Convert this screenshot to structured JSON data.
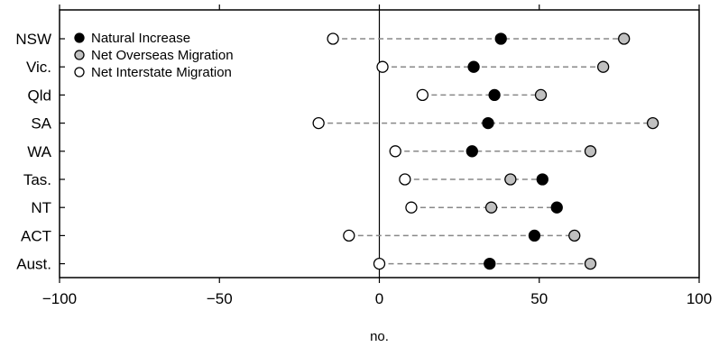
{
  "chart_data": {
    "type": "dot",
    "title": "",
    "xlabel": "no.",
    "ylabel": "",
    "xlim": [
      -100,
      100
    ],
    "xticks": [
      -100,
      -50,
      0,
      50,
      100
    ],
    "xtick_labels": [
      "−100",
      "−50",
      "0",
      "50",
      "100"
    ],
    "grid": false,
    "legend_position": "top-left",
    "categories": [
      "NSW",
      "Vic.",
      "Qld",
      "SA",
      "WA",
      "Tas.",
      "NT",
      "ACT",
      "Aust."
    ],
    "series": [
      {
        "name": "Natural Increase",
        "color": "#000000",
        "values": [
          38,
          29.5,
          36,
          34,
          29,
          51,
          55.5,
          48.5,
          34.5
        ]
      },
      {
        "name": "Net Overseas Migration",
        "color": "#c0c0c0",
        "values": [
          76.5,
          70,
          50.5,
          85.5,
          66,
          41,
          35,
          61,
          66
        ]
      },
      {
        "name": "Net Interstate Migration",
        "color": "#ffffff",
        "values": [
          -14.5,
          1,
          13.5,
          -19,
          5,
          8,
          10,
          -9.5,
          0
        ]
      }
    ]
  }
}
